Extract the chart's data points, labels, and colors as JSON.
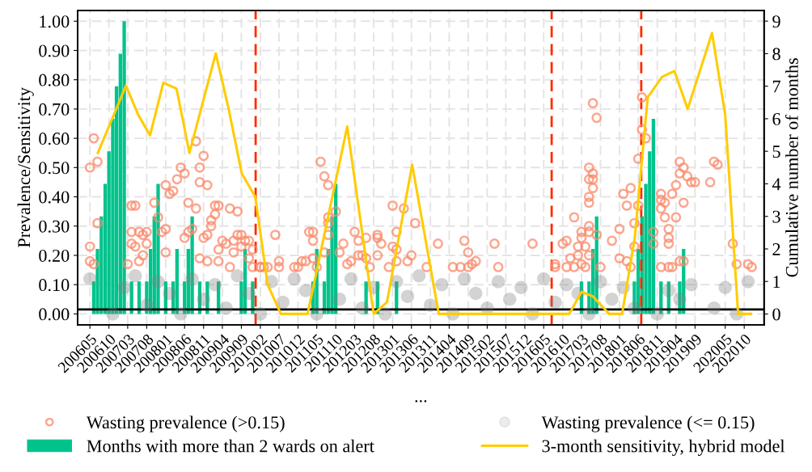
{
  "chart_data": {
    "type": "scatter",
    "xlabel": "...",
    "ylabel": "Prevalence/Sensitivity",
    "y2label": "Cumulative number of months",
    "xlim": [
      "2006-01-22",
      "2021-03-10"
    ],
    "xticks": [
      {
        "value": "2006-05",
        "label": "200605"
      },
      {
        "value": "2006-10",
        "label": "200610"
      },
      {
        "value": "2007-03",
        "label": "200703"
      },
      {
        "value": "2007-08",
        "label": "200708"
      },
      {
        "value": "2008-01",
        "label": "200801"
      },
      {
        "value": "2008-06",
        "label": "200806"
      },
      {
        "value": "2008-11",
        "label": "200811"
      },
      {
        "value": "2009-04",
        "label": "200904"
      },
      {
        "value": "2009-09",
        "label": "200909"
      },
      {
        "value": "2010-02",
        "label": "201002"
      },
      {
        "value": "2010-07",
        "label": "201007"
      },
      {
        "value": "2010-12",
        "label": "201012"
      },
      {
        "value": "2011-05",
        "label": "201105"
      },
      {
        "value": "2011-10",
        "label": "201110"
      },
      {
        "value": "2012-03",
        "label": "201203"
      },
      {
        "value": "2012-08",
        "label": "201208"
      },
      {
        "value": "2013-01",
        "label": "201301"
      },
      {
        "value": "2013-06",
        "label": "201306"
      },
      {
        "value": "2013-11",
        "label": "201311"
      },
      {
        "value": "2014-04",
        "label": "201404"
      },
      {
        "value": "2014-09",
        "label": "201409"
      },
      {
        "value": "2015-02",
        "label": "201502"
      },
      {
        "value": "2015-07",
        "label": "201507"
      },
      {
        "value": "2015-12",
        "label": "201512"
      },
      {
        "value": "2016-05",
        "label": "201605"
      },
      {
        "value": "2016-10",
        "label": "201610"
      },
      {
        "value": "2017-03",
        "label": "201703"
      },
      {
        "value": "2017-08",
        "label": "201708"
      },
      {
        "value": "2018-01",
        "label": "201801"
      },
      {
        "value": "2018-06",
        "label": "201806"
      },
      {
        "value": "2018-11",
        "label": "201811"
      },
      {
        "value": "2019-04",
        "label": "201904"
      },
      {
        "value": "2019-09",
        "label": "201909"
      },
      {
        "value": "2020-05",
        "label": "202005"
      },
      {
        "value": "2020-10",
        "label": "202010"
      }
    ],
    "ylim": [
      -0.037,
      1.037
    ],
    "yticks": [
      {
        "value": 0,
        "label": "0.00"
      },
      {
        "value": 0.1,
        "label": "0.10"
      },
      {
        "value": 0.2,
        "label": "0.20"
      },
      {
        "value": 0.3,
        "label": "0.30"
      },
      {
        "value": 0.4,
        "label": "0.40"
      },
      {
        "value": 0.5,
        "label": "0.50"
      },
      {
        "value": 0.6,
        "label": "0.60"
      },
      {
        "value": 0.7,
        "label": "0.70"
      },
      {
        "value": 0.8,
        "label": "0.80"
      },
      {
        "value": 0.9,
        "label": "0.90"
      },
      {
        "value": 1,
        "label": "1.00"
      }
    ],
    "y2lim": [
      -0.33,
      9.33
    ],
    "y2ticks": [
      0,
      1,
      2,
      3,
      4,
      5,
      6,
      7,
      8,
      9
    ],
    "grid": true,
    "legend": "bottom",
    "ref_lines": [
      {
        "axis": "x",
        "value": "2009-12-25",
        "color": "#ff2a00",
        "line_style": "dashed"
      },
      {
        "axis": "x",
        "value": "2016-07-04",
        "color": "#ff2a00",
        "line_style": "dashed"
      },
      {
        "axis": "x",
        "value": "2018-06-25",
        "color": "#ff2a00",
        "line_style": "dashed"
      },
      {
        "axis": "y",
        "value": 0.015,
        "color": "#000000",
        "line_style": "solid"
      }
    ],
    "series": [
      {
        "name": "Wasting prevalence (>0.15)",
        "marker": "circle",
        "color": "#f98a69",
        "x": [
          "2006-05",
          "2006-06",
          "2006-07",
          "2006-07",
          "2006-05",
          "2006-05",
          "2006-06",
          "2007-04",
          "2007-05",
          "2007-04",
          "2007-04",
          "2007-05",
          "2007-06",
          "2007-03",
          "2007-06",
          "2007-07",
          "2007-08",
          "2007-08",
          "2007-07",
          "2007-10",
          "2007-11",
          "2008-01",
          "2008-01",
          "2007-12",
          "2008-01",
          "2008-02",
          "2008-03",
          "2008-04",
          "2008-05",
          "2008-06",
          "2008-06",
          "2008-07",
          "2008-07",
          "2008-08",
          "2008-09",
          "2008-09",
          "2008-10",
          "2008-10",
          "2008-11",
          "2008-12",
          "2008-10",
          "2008-12",
          "2008-11",
          "2008-12",
          "2009-01",
          "2009-01",
          "2009-02",
          "2009-02",
          "2009-03",
          "2009-03",
          "2009-04",
          "2009-05",
          "2009-03",
          "2009-06",
          "2009-07",
          "2009-07",
          "2009-06",
          "2009-08",
          "2009-08",
          "2009-09",
          "2009-10",
          "2009-11",
          "2009-09",
          "2009-11",
          "2009-12",
          "2009-12",
          "2010-02",
          "2010-03",
          "2010-02",
          "2010-04",
          "2010-06",
          "2010-07",
          "2010-07",
          "2010-11",
          "2010-12",
          "2011-01",
          "2011-02",
          "2011-03",
          "2011-04",
          "2011-04",
          "2011-04",
          "2011-05",
          "2011-06",
          "2011-07",
          "2011-08",
          "2011-08",
          "2011-08",
          "2011-08",
          "2011-07",
          "2011-10",
          "2011-11",
          "2011-12",
          "2012-01",
          "2012-02",
          "2012-03",
          "2012-04",
          "2012-04",
          "2012-05",
          "2012-06",
          "2012-06",
          "2012-07",
          "2012-09",
          "2012-09",
          "2012-09",
          "2012-10",
          "2012-12",
          "2013-01",
          "2013-01",
          "2013-02",
          "2013-02",
          "2013-02",
          "2013-04",
          "2013-05",
          "2013-06",
          "2013-07",
          "2013-10",
          "2014-01",
          "2014-05",
          "2014-07",
          "2014-08",
          "2014-09",
          "2014-09",
          "2014-10",
          "2014-11",
          "2015-04",
          "2015-05",
          "2016-02",
          "2016-08",
          "2016-08",
          "2016-10",
          "2016-11",
          "2016-11",
          "2016-12",
          "2017-01",
          "2017-01",
          "2017-02",
          "2017-02",
          "2017-03",
          "2017-03",
          "2017-03",
          "2017-04",
          "2017-04",
          "2017-05",
          "2017-05",
          "2017-05",
          "2017-05",
          "2017-05",
          "2017-05",
          "2017-05",
          "2017-06",
          "2017-06",
          "2017-06",
          "2017-06",
          "2017-07",
          "2017-07",
          "2017-08",
          "2017-11",
          "2018-01",
          "2018-01",
          "2018-02",
          "2018-03",
          "2018-03",
          "2018-04",
          "2018-04",
          "2018-05",
          "2018-05",
          "2018-06",
          "2018-06",
          "2018-07",
          "2018-07",
          "2018-08",
          "2018-10",
          "2018-10",
          "2018-12",
          "2018-12",
          "2018-12",
          "2019-01",
          "2019-01",
          "2018-12",
          "2019-02",
          "2019-02",
          "2019-02",
          "2019-02",
          "2019-03",
          "2019-03",
          "2019-04",
          "2019-04",
          "2019-05",
          "2019-05",
          "2019-05",
          "2019-06",
          "2019-06",
          "2019-06",
          "2019-07",
          "2019-08",
          "2019-09",
          "2020-01",
          "2020-02",
          "2020-03",
          "2020-07",
          "2020-08",
          "2020-11",
          "2020-12"
        ],
        "values": [
          0.5,
          0.6,
          0.52,
          0.31,
          0.23,
          0.18,
          0.17,
          0.37,
          0.37,
          0.28,
          0.24,
          0.23,
          0.28,
          0.17,
          0.18,
          0.27,
          0.28,
          0.24,
          0.2,
          0.38,
          0.33,
          0.29,
          0.44,
          0.28,
          0.21,
          0.41,
          0.42,
          0.46,
          0.5,
          0.48,
          0.26,
          0.38,
          0.28,
          0.29,
          0.59,
          0.36,
          0.5,
          0.45,
          0.54,
          0.44,
          0.19,
          0.18,
          0.26,
          0.27,
          0.3,
          0.32,
          0.37,
          0.34,
          0.37,
          0.22,
          0.25,
          0.24,
          0.18,
          0.36,
          0.25,
          0.21,
          0.16,
          0.35,
          0.27,
          0.27,
          0.25,
          0.25,
          0.23,
          0.19,
          0.22,
          0.16,
          0.16,
          0.16,
          0.16,
          0.16,
          0.27,
          0.18,
          0.16,
          0.16,
          0.16,
          0.18,
          0.18,
          0.28,
          0.28,
          0.25,
          0.19,
          0.16,
          0.52,
          0.47,
          0.44,
          0.33,
          0.27,
          0.31,
          0.21,
          0.35,
          0.21,
          0.24,
          0.17,
          0.18,
          0.28,
          0.25,
          0.2,
          0.2,
          0.26,
          0.19,
          0.16,
          0.27,
          0.26,
          0.2,
          0.24,
          0.16,
          0.37,
          0.23,
          0.28,
          0.22,
          0.18,
          0.36,
          0.18,
          0.2,
          0.31,
          0.16,
          0.24,
          0.16,
          0.16,
          0.25,
          0.21,
          0.16,
          0.17,
          0.18,
          0.24,
          0.16,
          0.24,
          0.17,
          0.16,
          0.24,
          0.25,
          0.16,
          0.19,
          0.33,
          0.16,
          0.23,
          0.2,
          0.28,
          0.26,
          0.17,
          0.23,
          0.16,
          0.5,
          0.4,
          0.38,
          0.46,
          0.3,
          0.28,
          0.2,
          0.72,
          0.48,
          0.46,
          0.43,
          0.67,
          0.27,
          0.16,
          0.25,
          0.29,
          0.19,
          0.41,
          0.37,
          0.18,
          0.43,
          0.16,
          0.31,
          0.23,
          0.37,
          0.53,
          0.74,
          0.63,
          0.6,
          0.28,
          0.24,
          0.41,
          0.39,
          0.36,
          0.38,
          0.33,
          0.16,
          0.29,
          0.26,
          0.24,
          0.16,
          0.41,
          0.16,
          0.44,
          0.33,
          0.52,
          0.48,
          0.18,
          0.5,
          0.38,
          0.18,
          0.47,
          0.45,
          0.45,
          0.45,
          0.52,
          0.51,
          0.24,
          0.17,
          0.17,
          0.16
        ]
      },
      {
        "name": "Months with more than 2 wards on alert",
        "type": "bar",
        "axis": "y2",
        "color": "#00c38c",
        "x": [
          "2006-06",
          "2006-07",
          "2006-08",
          "2006-09",
          "2006-10",
          "2006-11",
          "2006-12",
          "2007-01",
          "2007-02",
          "2007-04",
          "2007-06",
          "2007-08",
          "2007-09",
          "2007-10",
          "2007-11",
          "2008-01",
          "2008-03",
          "2008-04",
          "2008-06",
          "2008-07",
          "2008-08",
          "2008-10",
          "2008-12",
          "2009-03",
          "2009-09",
          "2009-10",
          "2009-12",
          "2011-04",
          "2011-05",
          "2011-07",
          "2011-08",
          "2011-09",
          "2011-10",
          "2012-06",
          "2012-09",
          "2013-02",
          "2017-03",
          "2017-05",
          "2017-06",
          "2017-07",
          "2018-05",
          "2018-06",
          "2018-07",
          "2018-08",
          "2018-09",
          "2018-10",
          "2018-12",
          "2019-02",
          "2019-05",
          "2019-06"
        ],
        "values": [
          1,
          2,
          3,
          4,
          5,
          6,
          7,
          8,
          9,
          1,
          1,
          1,
          2,
          3,
          4,
          1,
          1,
          2,
          1,
          2,
          3,
          1,
          1,
          1,
          1,
          2,
          1,
          1,
          2,
          1,
          2,
          3,
          4,
          1,
          1,
          1,
          1,
          1,
          2,
          3,
          1,
          2,
          3,
          4,
          5,
          6,
          1,
          1,
          1,
          2
        ]
      },
      {
        "name": "Wasting prevalence (<= 0.15)",
        "marker": "circle",
        "color": "#808080",
        "x": [
          "2006-05",
          "2006-08",
          "2006-11",
          "2007-02",
          "2007-05",
          "2007-08",
          "2007-11",
          "2008-02",
          "2008-05",
          "2008-08",
          "2008-11",
          "2009-02",
          "2009-05",
          "2009-08",
          "2009-11",
          "2010-02",
          "2010-05",
          "2010-08",
          "2010-11",
          "2011-02",
          "2011-05",
          "2011-08",
          "2011-11",
          "2012-02",
          "2012-05",
          "2012-08",
          "2012-11",
          "2013-02",
          "2013-05",
          "2013-08",
          "2013-11",
          "2014-02",
          "2014-05",
          "2014-08",
          "2014-11",
          "2015-02",
          "2015-05",
          "2015-08",
          "2015-11",
          "2016-02",
          "2016-05",
          "2016-08",
          "2016-11",
          "2017-02",
          "2017-05",
          "2017-08",
          "2017-11",
          "2018-02",
          "2018-05",
          "2018-08",
          "2018-11",
          "2019-02",
          "2019-05",
          "2019-08",
          "2020-02",
          "2020-05",
          "2020-08",
          "2020-11"
        ],
        "values": [
          0.12,
          null,
          0.0,
          0.09,
          0.13,
          0.03,
          0.11,
          0.07,
          0.0,
          0.12,
          0.05,
          0.1,
          0.02,
          0.13,
          0.07,
          0.0,
          0.11,
          0.04,
          0.12,
          0.08,
          0.0,
          null,
          0.05,
          0.12,
          0.02,
          0.09,
          0.0,
          0.11,
          0.06,
          0.13,
          0.03,
          0.1,
          0.0,
          0.12,
          0.07,
          0.02,
          0.11,
          0.05,
          0.09,
          0.0,
          0.12,
          0.04,
          0.1,
          0.07,
          0.0,
          0.11,
          0.05,
          0.09,
          0.02,
          null,
          0.0,
          0.08,
          0.05,
          0.1,
          0.02,
          0.09,
          0.0,
          0.11
        ]
      },
      {
        "name": "3-month sensitivity, hybrid model",
        "type": "line",
        "color": "#ffcc00",
        "x": [
          "2006-07-04",
          "2006-11-19",
          "2007-02-15",
          "2007-05-25",
          "2007-08-28",
          "2007-12-13",
          "2008-03-28",
          "2008-07-10",
          "2009-02-07",
          "2009-05-22",
          "2009-09-04",
          "2009-12-22",
          "2010-04-01",
          "2010-07-16",
          "2011-02-16",
          "2012-01-01",
          "2012-08-01",
          "2012-11-16",
          "2013-06-07",
          "2014-01-07",
          "2016-11-22",
          "2017-03-01",
          "2017-06-01",
          "2017-10-10",
          "2018-01-22",
          "2018-05-04",
          "2018-08-16",
          "2018-12-10",
          "2019-03-19",
          "2019-07-04",
          "2020-01-16",
          "2020-05-01",
          "2020-08-13",
          "2020-11-25"
        ],
        "values": [
          0.55,
          0.69,
          0.78,
          0.68,
          0.61,
          0.79,
          0.77,
          0.55,
          0.89,
          0.7,
          0.48,
          0.4,
          0.1,
          0,
          0,
          0.64,
          0,
          0.04,
          0.51,
          0,
          0,
          0.075,
          0.06,
          0,
          0,
          0.26,
          0.74,
          0.81,
          0.83,
          0.7,
          0.96,
          0.68,
          0,
          0
        ]
      }
    ]
  }
}
